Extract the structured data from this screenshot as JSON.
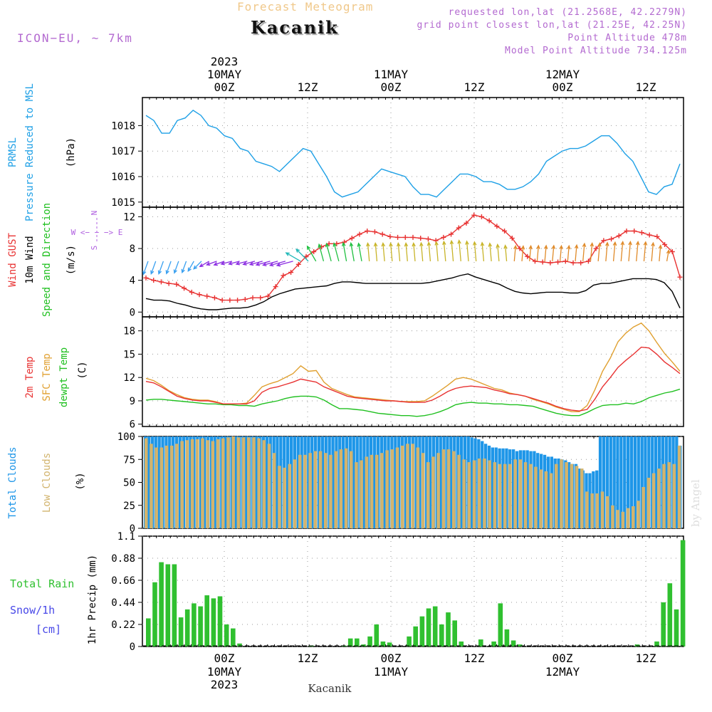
{
  "header": {
    "title": "Forecast Meteogram",
    "location": "Kacanik",
    "model": "ICON−EU, ~ 7km",
    "requested": "requested lon,lat (21.2568E, 42.2279N)",
    "grid_point": "grid point closest lon,lat (21.25E, 42.25N)",
    "point_altitude": "Point Altitude 478m",
    "model_altitude": "Model Point Altitude 734.125m"
  },
  "time_axis": {
    "top_year": "2023",
    "bottom_year": "2023",
    "day_labels": [
      "10MAY",
      "11MAY",
      "12MAY"
    ],
    "hour_labels": [
      "00Z",
      "12Z",
      "00Z",
      "12Z",
      "00Z",
      "12Z"
    ]
  },
  "footer": {
    "location": "Kacanik",
    "watermark": "by Angel"
  },
  "colors": {
    "pressure": "#1ea0e6",
    "gust": "#e83232",
    "wind": "#000000",
    "direction": "#20c020",
    "temp2m": "#e83232",
    "sfc": "#e0a030",
    "dew": "#20c020",
    "clouds_total": "#1e96e8",
    "clouds_low": "#d2b46e",
    "precip": "#30c030",
    "rose": "#b060e0",
    "snow": "#4848e8"
  },
  "chart_data": [
    {
      "type": "line",
      "title": "PRMSL",
      "legend": [
        "PRMSL",
        "Pressure Reduced to MSL"
      ],
      "ylabel": "(hPa)",
      "ylim": [
        1014.8,
        1019.1
      ],
      "yticks": [
        1015,
        1016,
        1017,
        1018
      ],
      "series": [
        {
          "name": "Pressure Reduced to MSL",
          "values": [
            1018.4,
            1018.2,
            1017.7,
            1017.7,
            1018.2,
            1018.3,
            1018.6,
            1018.4,
            1018.0,
            1017.9,
            1017.6,
            1017.5,
            1017.1,
            1017.0,
            1016.6,
            1016.5,
            1016.4,
            1016.2,
            1016.5,
            1016.8,
            1017.1,
            1017.0,
            1016.5,
            1016.0,
            1015.4,
            1015.2,
            1015.3,
            1015.4,
            1015.7,
            1016.0,
            1016.3,
            1016.2,
            1016.1,
            1016.0,
            1015.6,
            1015.3,
            1015.3,
            1015.2,
            1015.5,
            1015.8,
            1016.1,
            1016.1,
            1016.0,
            1015.8,
            1015.8,
            1015.7,
            1015.5,
            1015.5,
            1015.6,
            1015.8,
            1016.1,
            1016.6,
            1016.8,
            1017.0,
            1017.1,
            1017.1,
            1017.2,
            1017.4,
            1017.6,
            1017.6,
            1017.3,
            1016.9,
            1016.6,
            1016.0,
            1015.4,
            1015.3,
            1015.6,
            1015.7,
            1016.5
          ]
        }
      ]
    },
    {
      "type": "line",
      "title": "Wind",
      "legend": [
        "Wind GUST",
        "10m Wind",
        "Speed and Direction"
      ],
      "ylabel": "(m/s)",
      "rose_labels": [
        "N",
        "W <− − −> E",
        "S"
      ],
      "ylim": [
        -0.6,
        13.2
      ],
      "yticks": [
        0,
        4,
        8,
        12
      ],
      "series": [
        {
          "name": "Wind GUST",
          "values": [
            4.3,
            4.0,
            3.8,
            3.6,
            3.5,
            3.0,
            2.5,
            2.2,
            2.0,
            1.8,
            1.5,
            1.5,
            1.5,
            1.6,
            1.8,
            1.8,
            2.0,
            3.2,
            4.6,
            5.0,
            6.0,
            7.0,
            7.6,
            8.2,
            8.6,
            8.6,
            8.8,
            9.3,
            9.8,
            10.2,
            10.1,
            9.8,
            9.5,
            9.4,
            9.4,
            9.4,
            9.3,
            9.2,
            9.0,
            9.4,
            9.8,
            10.6,
            11.2,
            12.2,
            12.0,
            11.5,
            10.8,
            10.2,
            9.3,
            8.0,
            7.0,
            6.4,
            6.3,
            6.2,
            6.3,
            6.4,
            6.2,
            6.2,
            6.4,
            8.0,
            9.0,
            9.2,
            9.6,
            10.2,
            10.2,
            10.0,
            9.7,
            9.5,
            8.5,
            7.6,
            4.4
          ]
        },
        {
          "name": "10m Wind",
          "values": [
            1.7,
            1.5,
            1.5,
            1.4,
            1.1,
            0.9,
            0.6,
            0.4,
            0.3,
            0.3,
            0.4,
            0.5,
            0.5,
            0.6,
            0.9,
            1.3,
            1.9,
            2.3,
            2.6,
            2.9,
            3.0,
            3.1,
            3.2,
            3.3,
            3.6,
            3.8,
            3.8,
            3.7,
            3.6,
            3.6,
            3.6,
            3.6,
            3.6,
            3.6,
            3.6,
            3.6,
            3.7,
            3.9,
            4.1,
            4.3,
            4.6,
            4.8,
            4.4,
            4.1,
            3.8,
            3.5,
            3.0,
            2.6,
            2.4,
            2.3,
            2.4,
            2.5,
            2.5,
            2.5,
            2.4,
            2.4,
            2.7,
            3.4,
            3.6,
            3.6,
            3.8,
            4.0,
            4.2,
            4.2,
            4.2,
            4.1,
            3.7,
            2.6,
            0.5
          ]
        },
        {
          "name": "Direction (deg from)",
          "values": [
            20,
            20,
            20,
            20,
            20,
            20,
            30,
            45,
            60,
            70,
            70,
            75,
            75,
            75,
            75,
            75,
            75,
            75,
            75,
            75,
            120,
            135,
            150,
            165,
            165,
            165,
            170,
            170,
            170,
            175,
            175,
            175,
            175,
            175,
            175,
            175,
            175,
            175,
            175,
            175,
            175,
            175,
            175,
            175,
            175,
            175,
            175,
            175,
            185,
            185,
            185,
            185,
            185,
            185,
            185,
            185,
            185,
            185,
            185,
            185,
            185,
            185,
            185,
            185,
            185,
            185,
            185,
            185,
            190,
            195,
            200
          ]
        }
      ]
    },
    {
      "type": "line",
      "title": "Temperature",
      "legend": [
        "2m Temp",
        "SFC Temp",
        "dewpt Temp"
      ],
      "ylabel": "(C)",
      "ylim": [
        5.7,
        19.8
      ],
      "yticks": [
        6,
        9,
        12,
        15,
        18
      ],
      "series": [
        {
          "name": "2m Temp",
          "values": [
            11.5,
            11.3,
            10.8,
            10.2,
            9.6,
            9.3,
            9.1,
            9.0,
            9.0,
            8.8,
            8.6,
            8.6,
            8.6,
            8.6,
            9.0,
            10.1,
            10.6,
            10.8,
            11.1,
            11.4,
            11.8,
            11.6,
            11.4,
            10.8,
            10.4,
            10.0,
            9.6,
            9.4,
            9.3,
            9.2,
            9.1,
            9.0,
            9.0,
            8.9,
            8.8,
            8.8,
            8.8,
            9.1,
            9.6,
            10.2,
            10.6,
            10.8,
            10.9,
            10.8,
            10.7,
            10.4,
            10.2,
            9.9,
            9.8,
            9.6,
            9.3,
            9.0,
            8.7,
            8.3,
            8.0,
            7.8,
            7.7,
            7.9,
            9.2,
            10.8,
            12.0,
            13.3,
            14.2,
            15.0,
            15.9,
            15.8,
            15.0,
            14.0,
            13.3,
            12.5
          ]
        },
        {
          "name": "SFC Temp",
          "values": [
            11.9,
            11.6,
            11.0,
            10.3,
            9.8,
            9.4,
            9.2,
            9.1,
            9.1,
            8.9,
            8.6,
            8.6,
            8.6,
            8.7,
            9.7,
            10.8,
            11.2,
            11.5,
            12.0,
            12.5,
            13.5,
            12.8,
            12.9,
            11.4,
            10.6,
            10.2,
            9.8,
            9.5,
            9.4,
            9.3,
            9.2,
            9.1,
            9.0,
            8.9,
            8.9,
            8.9,
            9.0,
            9.6,
            10.3,
            11.0,
            11.8,
            12.0,
            11.8,
            11.4,
            11.0,
            10.6,
            10.4,
            10.0,
            9.8,
            9.6,
            9.2,
            8.9,
            8.6,
            8.2,
            7.9,
            7.6,
            7.6,
            8.4,
            10.4,
            12.8,
            14.5,
            16.6,
            17.7,
            18.5,
            19.0,
            18.0,
            16.5,
            15.1,
            14.0,
            12.8
          ]
        },
        {
          "name": "dewpt Temp",
          "values": [
            9.1,
            9.2,
            9.2,
            9.1,
            9.0,
            8.9,
            8.8,
            8.7,
            8.6,
            8.6,
            8.5,
            8.5,
            8.4,
            8.4,
            8.3,
            8.6,
            8.8,
            9.0,
            9.3,
            9.5,
            9.6,
            9.6,
            9.5,
            9.1,
            8.5,
            8.0,
            8.0,
            7.9,
            7.8,
            7.6,
            7.4,
            7.3,
            7.2,
            7.1,
            7.1,
            7.0,
            7.1,
            7.3,
            7.6,
            8.0,
            8.5,
            8.7,
            8.8,
            8.7,
            8.7,
            8.6,
            8.6,
            8.5,
            8.5,
            8.4,
            8.3,
            8.0,
            7.7,
            7.4,
            7.2,
            7.1,
            7.1,
            7.5,
            8.0,
            8.4,
            8.5,
            8.5,
            8.7,
            8.6,
            8.9,
            9.4,
            9.7,
            10.0,
            10.2,
            10.5
          ]
        }
      ]
    },
    {
      "type": "bar",
      "title": "Clouds",
      "legend": [
        "Total Clouds",
        "Low Clouds"
      ],
      "ylabel": "(%)",
      "ylim": [
        0,
        100
      ],
      "yticks": [
        0,
        25,
        50,
        75,
        100
      ],
      "series": [
        {
          "name": "Total Clouds",
          "values": [
            100,
            100,
            100,
            100,
            100,
            100,
            100,
            100,
            100,
            100,
            100,
            100,
            100,
            100,
            100,
            100,
            100,
            100,
            100,
            100,
            100,
            100,
            100,
            100,
            100,
            100,
            100,
            100,
            100,
            100,
            100,
            100,
            100,
            100,
            100,
            100,
            100,
            100,
            100,
            100,
            100,
            100,
            100,
            100,
            100,
            100,
            100,
            100,
            100,
            100,
            100,
            100,
            100,
            100,
            100,
            100,
            100,
            100,
            100,
            100,
            100,
            100,
            100,
            100,
            100,
            100,
            100,
            100,
            100,
            100,
            100,
            100,
            100,
            100,
            100,
            100,
            100,
            100,
            100,
            100,
            100,
            100,
            100,
            100,
            100,
            100,
            100,
            100,
            100,
            100,
            100,
            100,
            100,
            100,
            99,
            98,
            97,
            95,
            92,
            90,
            88,
            88,
            87,
            87,
            87,
            86,
            86,
            84,
            85,
            85,
            85,
            84,
            84,
            82,
            81,
            80,
            78,
            78,
            76,
            76,
            75,
            74,
            72,
            70,
            70,
            65,
            63,
            60,
            60,
            62,
            63,
            100,
            100,
            100,
            100,
            100,
            100,
            100,
            100,
            100,
            100,
            100,
            100,
            100,
            100,
            100,
            100,
            100,
            100,
            100,
            100,
            100,
            100,
            100,
            90
          ]
        },
        {
          "name": "Low Clouds",
          "values": [
            98,
            92,
            88,
            88,
            90,
            90,
            92,
            95,
            96,
            97,
            97,
            98,
            96,
            95,
            97,
            98,
            99,
            100,
            99,
            99,
            99,
            99,
            98,
            96,
            92,
            82,
            68,
            66,
            70,
            75,
            80,
            80,
            82,
            84,
            84,
            82,
            80,
            84,
            86,
            87,
            84,
            72,
            74,
            78,
            80,
            80,
            82,
            85,
            86,
            88,
            90,
            92,
            92,
            88,
            82,
            72,
            78,
            82,
            86,
            86,
            84,
            80,
            75,
            72,
            74,
            76,
            76,
            74,
            72,
            70,
            70,
            70,
            75,
            75,
            72,
            70,
            67,
            64,
            62,
            60,
            70,
            75,
            72,
            70,
            68,
            65,
            40,
            38,
            38,
            40,
            35,
            25,
            20,
            18,
            22,
            24,
            30,
            45,
            55,
            60,
            65,
            70,
            72,
            70,
            90
          ]
        }
      ]
    },
    {
      "type": "bar",
      "title": "Precipitation",
      "legend": [
        "Total Rain",
        "Snow/1h",
        "[cm]"
      ],
      "ylabel": "1hr Precip (mm)",
      "ylim": [
        0,
        1.1
      ],
      "yticks": [
        0,
        0.22,
        0.44,
        0.66,
        0.88,
        1.1
      ],
      "series": [
        {
          "name": "Total Rain",
          "values": [
            0.28,
            0.64,
            0.84,
            0.82,
            0.82,
            0.29,
            0.37,
            0.43,
            0.4,
            0.51,
            0.48,
            0.5,
            0.22,
            0.18,
            0.03,
            0,
            0,
            0,
            0,
            0,
            0,
            0,
            0,
            0,
            0,
            0.01,
            0,
            0,
            0,
            0,
            0.01,
            0.08,
            0.08,
            0.02,
            0.1,
            0.22,
            0.05,
            0.04,
            0,
            0,
            0.1,
            0.2,
            0.3,
            0.38,
            0.4,
            0.22,
            0.34,
            0.26,
            0.05,
            0,
            0,
            0.07,
            0,
            0.05,
            0.43,
            0.17,
            0.06,
            0.02,
            0,
            0,
            0,
            0,
            0,
            0,
            0,
            0,
            0,
            0,
            0,
            0,
            0,
            0,
            0,
            0,
            0,
            0.02,
            0,
            0,
            0.05,
            0.44,
            0.63,
            0.37,
            1.06
          ]
        }
      ]
    }
  ]
}
